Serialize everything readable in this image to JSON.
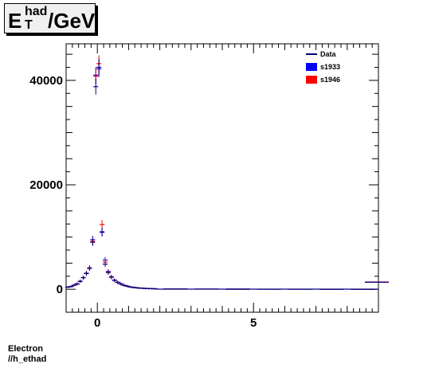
{
  "header": {
    "title_main": "E",
    "title_sup": "had",
    "title_sub": "T",
    "title_rest": "/GeV"
  },
  "footer": {
    "line1": "Electron",
    "line2": "//h_ethad"
  },
  "chart_data": {
    "type": "scatter",
    "title": "E_T^had/GeV",
    "xlim": [
      -1,
      9
    ],
    "ylim": [
      -4400,
      47000
    ],
    "x_ticks": [
      0,
      5
    ],
    "y_ticks": [
      0,
      20000,
      40000
    ],
    "legend_position": "top-right",
    "grid": false,
    "series": [
      {
        "name": "Data",
        "color": "#00007f",
        "x": [
          -0.95,
          -0.85,
          -0.75,
          -0.65,
          -0.55,
          -0.45,
          -0.35,
          -0.25,
          -0.15,
          -0.05,
          0.05,
          0.15,
          0.25,
          0.35,
          0.45,
          0.55,
          0.65,
          0.75,
          0.85,
          0.95,
          1.05,
          1.15,
          1.25,
          1.35,
          1.45,
          1.55,
          1.65,
          1.75,
          1.85,
          2.5,
          3.5,
          4.5,
          5.5,
          6.5,
          7.5,
          8.5,
          8.95
        ],
        "y": [
          400,
          500,
          750,
          1000,
          1500,
          2200,
          3000,
          4000,
          9000,
          38800,
          42500,
          11000,
          4800,
          3200,
          2300,
          1700,
          1300,
          1000,
          750,
          600,
          450,
          350,
          280,
          230,
          190,
          160,
          130,
          110,
          90,
          50,
          30,
          20,
          15,
          10,
          8,
          5,
          1350
        ]
      },
      {
        "name": "s1933",
        "color": "#0000ff",
        "x": [
          -0.95,
          -0.85,
          -0.75,
          -0.65,
          -0.55,
          -0.45,
          -0.35,
          -0.25,
          -0.15,
          -0.05,
          0.05,
          0.15,
          0.25,
          0.35,
          0.45,
          0.55,
          0.65,
          0.75,
          0.85,
          0.95,
          1.05,
          1.15,
          1.25,
          1.35,
          1.45,
          1.55,
          1.65,
          1.75,
          1.85,
          2.5,
          3.5,
          4.5,
          5.5,
          6.5,
          7.5,
          8.5,
          8.95
        ],
        "y": [
          420,
          520,
          780,
          1050,
          1550,
          2250,
          3100,
          4100,
          9500,
          41000,
          42200,
          10900,
          5600,
          3400,
          2400,
          1750,
          1350,
          1050,
          780,
          620,
          470,
          360,
          290,
          240,
          200,
          165,
          135,
          115,
          95,
          52,
          32,
          22,
          16,
          11,
          9,
          6,
          1400
        ]
      },
      {
        "name": "s1946",
        "color": "#ff0000",
        "x": [
          -0.95,
          -0.85,
          -0.75,
          -0.65,
          -0.55,
          -0.45,
          -0.35,
          -0.25,
          -0.15,
          -0.05,
          0.05,
          0.15,
          0.25,
          0.35,
          0.45,
          0.55,
          0.65,
          0.75,
          0.85,
          0.95,
          1.05,
          1.15,
          1.25,
          1.35,
          1.45,
          1.55,
          1.65,
          1.75,
          1.85,
          2.5,
          3.5,
          4.5,
          5.5,
          6.5,
          7.5,
          8.5,
          8.95
        ],
        "y": [
          410,
          510,
          770,
          1030,
          1520,
          2230,
          3050,
          4050,
          9200,
          40800,
          43200,
          12400,
          5200,
          3300,
          2350,
          1720,
          1320,
          1020,
          770,
          610,
          460,
          355,
          285,
          235,
          195,
          162,
          132,
          112,
          92,
          51,
          31,
          21,
          15,
          10,
          8,
          5,
          1380
        ]
      }
    ]
  }
}
